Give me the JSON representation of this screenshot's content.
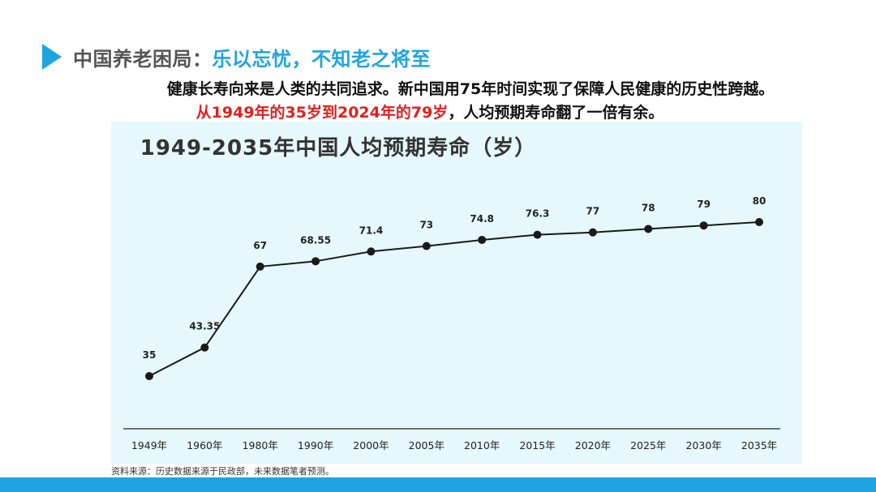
{
  "header": {
    "title_prefix": "中国养老困局：",
    "title_highlight": "乐以忘忧，不知老之将至"
  },
  "intro": {
    "line1": "健康长寿向来是人类的共同追求。新中国用75年时间实现了保障人民健康的历史性跨越。",
    "line2_red": "从1949年的35岁到2024年的79岁",
    "line2_rest": "，人均预期寿命翻了一倍有余。"
  },
  "chart_data": {
    "type": "line",
    "title": "1949-2035年中国人均预期寿命（岁）",
    "xlabel": "",
    "ylabel": "",
    "categories": [
      "1949年",
      "1960年",
      "1980年",
      "1990年",
      "2000年",
      "2005年",
      "2010年",
      "2015年",
      "2020年",
      "2025年",
      "2030年",
      "2035年"
    ],
    "values": [
      35,
      43.35,
      67,
      68.55,
      71.4,
      73,
      74.8,
      76.3,
      77,
      78,
      79,
      80
    ],
    "value_labels": [
      "35",
      "43.35",
      "67",
      "68.55",
      "71.4",
      "73",
      "74.8",
      "76.3",
      "77",
      "78",
      "79",
      "80"
    ],
    "ylim": [
      20,
      90
    ],
    "grid": false,
    "colors": {
      "line": "#1a1a1a",
      "marker": "#1a1a1a",
      "axis": "#222222",
      "background": "#e6f8fb"
    }
  },
  "source_note": "资料来源：历史数据来源于民政部，未来数据笔者预测。",
  "colors": {
    "accent": "#1ea5e0",
    "highlight_red": "#e21f1f"
  }
}
